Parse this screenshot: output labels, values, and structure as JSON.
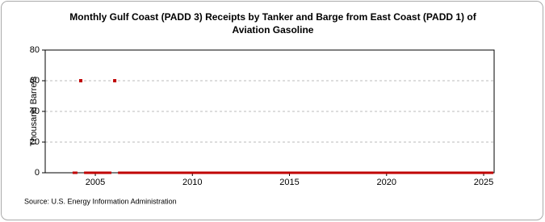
{
  "chart_data": {
    "type": "line",
    "title": [
      "Monthly Gulf Coast (PADD 3) Receipts by Tanker and Barge from East Coast (PADD 1) of",
      "Aviation Gasoline"
    ],
    "y_label": "Thousand Barrels",
    "source": "Source: U.S. Energy Information Administration",
    "x": [
      2003.83,
      2004.08,
      2004.17,
      2004.25,
      2004.33,
      2004.42,
      2005.83,
      2005.92,
      2006.0,
      2006.08,
      2006.17,
      2025.5
    ],
    "series": [
      {
        "color": "#c00000",
        "values": [
          0,
          0,
          null,
          60,
          null,
          0,
          0,
          null,
          60,
          null,
          0,
          0
        ]
      }
    ],
    "xlim": [
      2002.42,
      2025.54
    ],
    "xticks": [
      2005,
      2010,
      2015,
      2020,
      2025
    ],
    "ylim": [
      0,
      80
    ],
    "yticks": [
      0,
      20,
      40,
      60,
      80
    ],
    "grid": true
  }
}
